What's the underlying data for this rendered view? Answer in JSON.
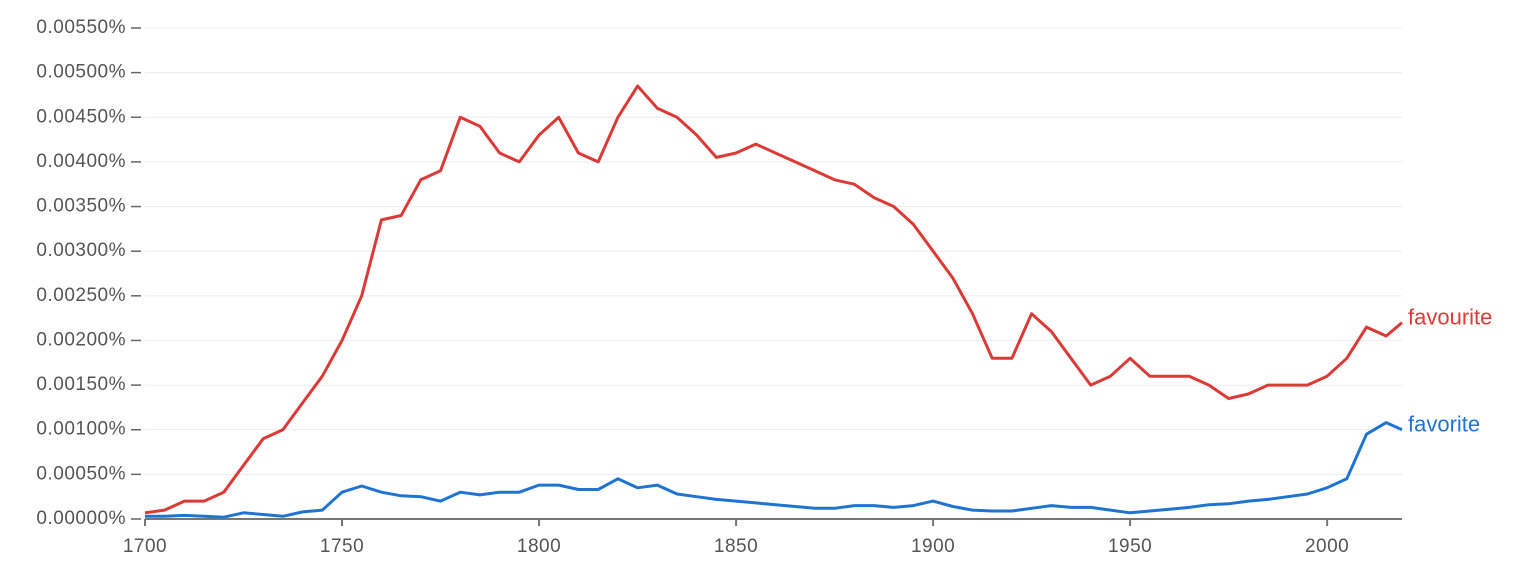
{
  "chart_data": {
    "type": "line",
    "x": [
      1700,
      1705,
      1710,
      1715,
      1720,
      1725,
      1730,
      1735,
      1740,
      1745,
      1750,
      1755,
      1760,
      1765,
      1770,
      1775,
      1780,
      1785,
      1790,
      1795,
      1800,
      1805,
      1810,
      1815,
      1820,
      1825,
      1830,
      1835,
      1840,
      1845,
      1850,
      1855,
      1860,
      1865,
      1870,
      1875,
      1880,
      1885,
      1890,
      1895,
      1900,
      1905,
      1910,
      1915,
      1920,
      1925,
      1930,
      1935,
      1940,
      1945,
      1950,
      1955,
      1960,
      1965,
      1970,
      1975,
      1980,
      1985,
      1990,
      1995,
      2000,
      2005,
      2010,
      2015,
      2019
    ],
    "series": [
      {
        "name": "favourite",
        "color": "#db3b36",
        "values": [
          7e-05,
          0.0001,
          0.0002,
          0.0002,
          0.0003,
          0.0006,
          0.0009,
          0.001,
          0.0013,
          0.0016,
          0.002,
          0.0025,
          0.00335,
          0.0034,
          0.0038,
          0.0039,
          0.0045,
          0.0044,
          0.0041,
          0.004,
          0.0043,
          0.0045,
          0.0041,
          0.004,
          0.0045,
          0.00485,
          0.0046,
          0.0045,
          0.0043,
          0.00405,
          0.0041,
          0.0042,
          0.0041,
          0.004,
          0.0039,
          0.0038,
          0.00375,
          0.0036,
          0.0035,
          0.0033,
          0.003,
          0.0027,
          0.0023,
          0.0018,
          0.0018,
          0.0023,
          0.0021,
          0.0018,
          0.0015,
          0.0016,
          0.0018,
          0.0016,
          0.0016,
          0.0016,
          0.0015,
          0.00135,
          0.0014,
          0.0015,
          0.0015,
          0.0015,
          0.0016,
          0.0018,
          0.00215,
          0.00205,
          0.0022
        ]
      },
      {
        "name": "favorite",
        "color": "#1f74d2",
        "values": [
          3e-05,
          3e-05,
          4e-05,
          3e-05,
          2e-05,
          7e-05,
          5e-05,
          3e-05,
          8e-05,
          0.0001,
          0.0003,
          0.00037,
          0.0003,
          0.00026,
          0.00025,
          0.0002,
          0.0003,
          0.00027,
          0.0003,
          0.0003,
          0.00038,
          0.00038,
          0.00033,
          0.00033,
          0.00045,
          0.00035,
          0.00038,
          0.00028,
          0.00025,
          0.00022,
          0.0002,
          0.00018,
          0.00016,
          0.00014,
          0.00012,
          0.00012,
          0.00015,
          0.00015,
          0.00013,
          0.00015,
          0.0002,
          0.00014,
          0.0001,
          9e-05,
          9e-05,
          0.00012,
          0.00015,
          0.00013,
          0.00013,
          0.0001,
          7e-05,
          9e-05,
          0.00011,
          0.00013,
          0.00016,
          0.00017,
          0.0002,
          0.00022,
          0.00025,
          0.00028,
          0.00035,
          0.00045,
          0.00095,
          0.00108,
          0.001
        ]
      }
    ],
    "xlim": [
      1700,
      2019
    ],
    "xticks": [
      1700,
      1750,
      1800,
      1850,
      1900,
      1950,
      2000
    ],
    "ylim": [
      0,
      0.0055
    ],
    "yticks": [
      {
        "value": 0,
        "label": "0.00000%"
      },
      {
        "value": 0.0005,
        "label": "0.00050%"
      },
      {
        "value": 0.001,
        "label": "0.00100%"
      },
      {
        "value": 0.0015,
        "label": "0.00150%"
      },
      {
        "value": 0.002,
        "label": "0.00200%"
      },
      {
        "value": 0.0025,
        "label": "0.00250%"
      },
      {
        "value": 0.003,
        "label": "0.00300%"
      },
      {
        "value": 0.0035,
        "label": "0.00350%"
      },
      {
        "value": 0.004,
        "label": "0.00400%"
      },
      {
        "value": 0.0045,
        "label": "0.00450%"
      },
      {
        "value": 0.005,
        "label": "0.00500%"
      },
      {
        "value": 0.0055,
        "label": "0.00550%"
      }
    ],
    "grid": true
  }
}
